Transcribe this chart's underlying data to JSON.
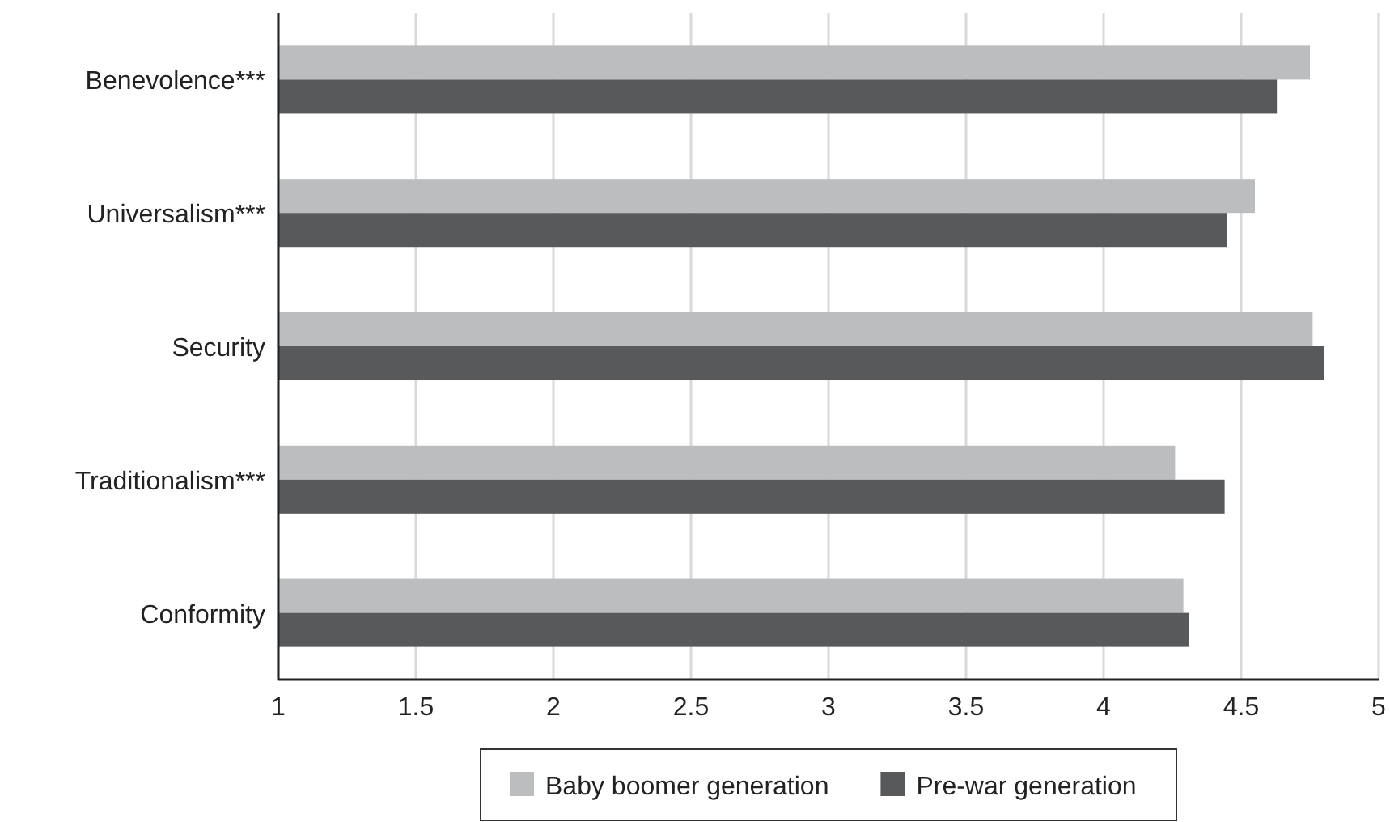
{
  "chart_data": {
    "type": "bar",
    "orientation": "horizontal",
    "categories": [
      "Benevolence***",
      "Universalism***",
      "Security",
      "Traditionalism***",
      "Conformity"
    ],
    "series": [
      {
        "name": "Baby boomer generation",
        "color": "#bcbdbf",
        "values": [
          4.75,
          4.55,
          4.76,
          4.26,
          4.29
        ]
      },
      {
        "name": "Pre-war generation",
        "color": "#58595b",
        "values": [
          4.63,
          4.45,
          4.8,
          4.44,
          4.31
        ]
      }
    ],
    "xlim": [
      1,
      5
    ],
    "xticks": [
      1,
      1.5,
      2,
      2.5,
      3,
      3.5,
      4,
      4.5,
      5
    ],
    "grid": "x",
    "legend": "bottom"
  }
}
